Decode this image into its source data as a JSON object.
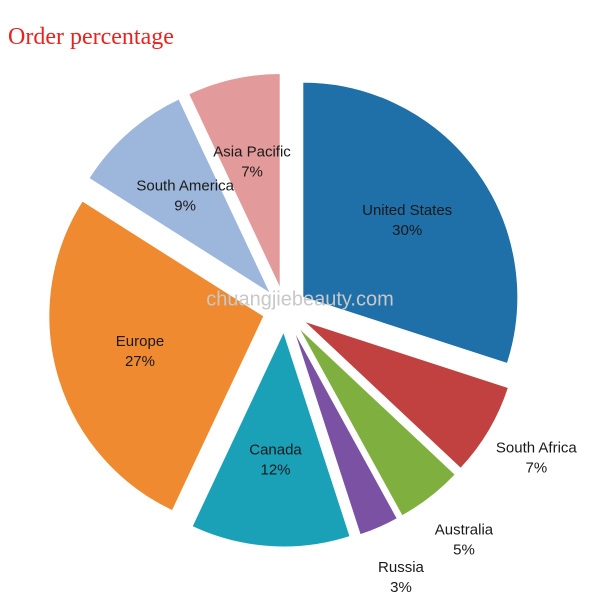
{
  "chart_data": {
    "type": "pie",
    "title": "Order percentage",
    "watermark": "chuangjiebeauty.com",
    "categories": [
      "United States",
      "South Africa",
      "Australia",
      "Russia",
      "Canada",
      "Europe",
      "South America",
      "Asia Pacific"
    ],
    "values": [
      30,
      7,
      5,
      3,
      12,
      27,
      9,
      7
    ],
    "value_labels": [
      "30%",
      "7%",
      "5%",
      "3%",
      "12%",
      "27%",
      "9%",
      "7%"
    ],
    "colors": [
      "#1f6fa8",
      "#c0413f",
      "#7fb03f",
      "#7b52a3",
      "#1aa1b8",
      "#ef8a30",
      "#9db7dc",
      "#e29a9a"
    ]
  }
}
